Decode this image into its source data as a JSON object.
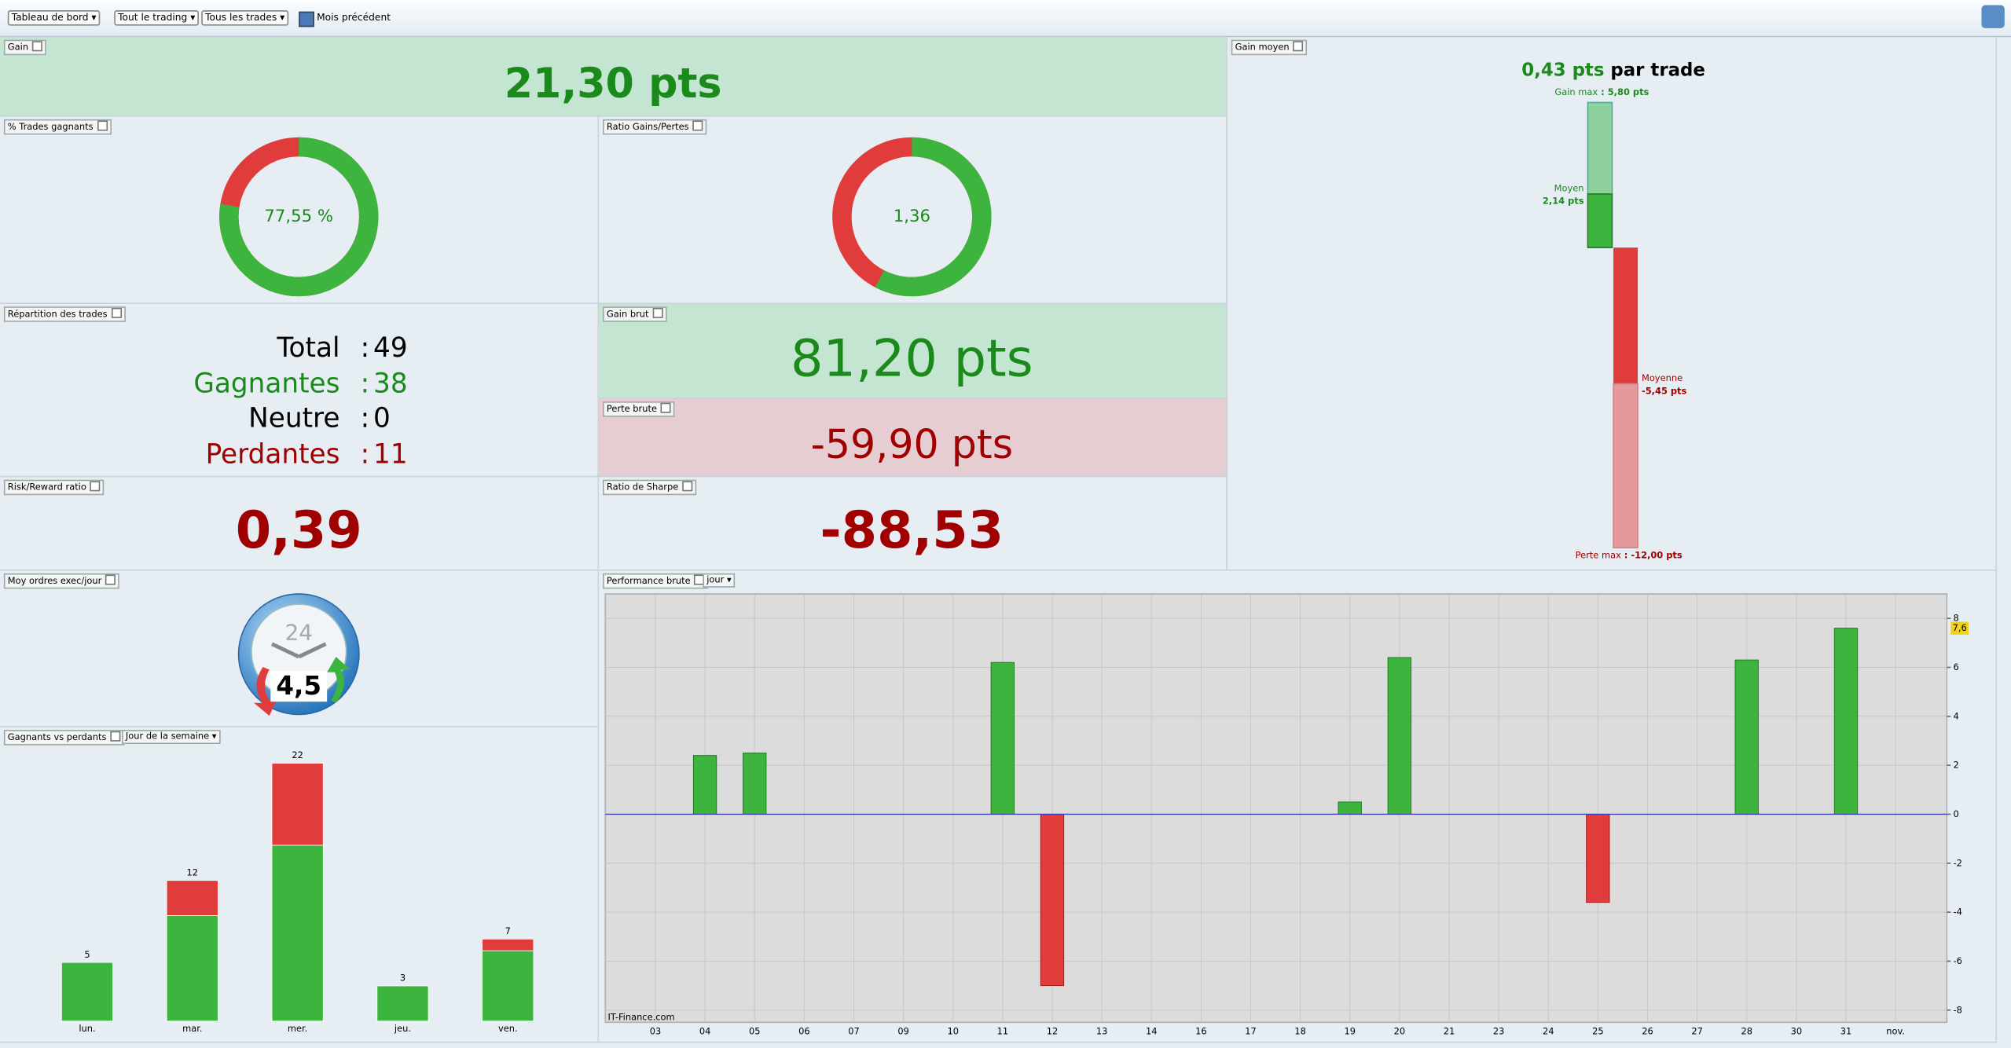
{
  "toolbar": {
    "dashboard": "Tableau de bord",
    "scope": "Tout le trading",
    "trades": "Tous les trades",
    "period": "Mois précédent"
  },
  "gain": {
    "label": "Gain",
    "value": "21,30 pts"
  },
  "win_rate": {
    "label": "% Trades gagnants",
    "chart": {
      "type": "donut",
      "value": 77.55,
      "value_label": "77,55 %",
      "colors": [
        "#3db43d",
        "#e03c3c"
      ]
    }
  },
  "ratio": {
    "label": "Ratio Gains/Pertes",
    "chart": {
      "type": "donut-ratio",
      "value": 1.36,
      "value_label": "1,36",
      "colors": [
        "#3db43d",
        "#e03c3c"
      ]
    }
  },
  "repartition": {
    "label": "Répartition des trades",
    "rows": [
      {
        "name": "Total",
        "value": 49,
        "color": "#000000"
      },
      {
        "name": "Gagnantes",
        "value": 38,
        "color": "#1a8a1a"
      },
      {
        "name": "Neutre",
        "value": 0,
        "color": "#000000"
      },
      {
        "name": "Perdantes",
        "value": 11,
        "color": "#a00000"
      }
    ]
  },
  "gain_brut": {
    "label": "Gain brut",
    "value": "81,20 pts"
  },
  "perte_brute": {
    "label": "Perte brute",
    "value": "-59,90 pts"
  },
  "risk_reward": {
    "label": "Risk/Reward ratio",
    "value": "0,39"
  },
  "sharpe": {
    "label": "Ratio de Sharpe",
    "value": "-88,53"
  },
  "gain_moyen": {
    "label": "Gain moyen",
    "headline": "0,43 pts",
    "headline_suffix": "par trade",
    "chart": {
      "type": "range-bar",
      "labels": [
        "Gain max",
        "Moyen",
        "Moyenne",
        "Perte max"
      ],
      "values": [
        5.8,
        2.14,
        -5.45,
        -12
      ],
      "value_labels": [
        "5,80 pts",
        "2,14 pts",
        "-5,45 pts",
        "-12,00 pts"
      ],
      "colors": [
        "#8fd19e",
        "#3db43d",
        "#e03c3c",
        "#e49a9c"
      ]
    }
  },
  "orders": {
    "label": "Moy ordres exec/jour",
    "clock_label": "24",
    "value": "4,5"
  },
  "weekday": {
    "label": "Gagnants vs perdants",
    "grouping": "Jour de la semaine",
    "chart": {
      "type": "stacked-bar",
      "categories": [
        "lun.",
        "mar.",
        "mer.",
        "jeu.",
        "ven."
      ],
      "series": [
        {
          "color": "#3db43d",
          "values": [
            5,
            9,
            15,
            3,
            6
          ]
        },
        {
          "color": "#e03c3c",
          "values": [
            0,
            3,
            7,
            0,
            1
          ]
        }
      ],
      "totals": [
        5,
        12,
        22,
        3,
        7
      ]
    }
  },
  "performance": {
    "label": "Performance brute",
    "period": "jour",
    "watermark": "IT-Finance.com",
    "chart": {
      "type": "bar",
      "categories": [
        "03",
        "04",
        "05",
        "06",
        "07",
        "09",
        "10",
        "11",
        "12",
        "13",
        "14",
        "16",
        "17",
        "18",
        "19",
        "20",
        "21",
        "23",
        "24",
        "25",
        "26",
        "27",
        "28",
        "30",
        "31",
        "nov."
      ],
      "values": [
        null,
        2.4,
        2.5,
        null,
        null,
        null,
        null,
        6.2,
        -7.0,
        null,
        null,
        null,
        null,
        null,
        0.5,
        6.4,
        null,
        null,
        null,
        -3.6,
        null,
        null,
        6.3,
        null,
        7.6,
        null
      ],
      "ylim": [
        -8.5,
        9
      ],
      "yticks": [
        -8,
        -6,
        -4,
        -2,
        0,
        2,
        4,
        6,
        8
      ],
      "grid": true,
      "colors": {
        "positive": "#3db43d",
        "negative": "#e03c3c"
      },
      "last_value": {
        "value": 7.6,
        "label": "7,6"
      }
    }
  }
}
